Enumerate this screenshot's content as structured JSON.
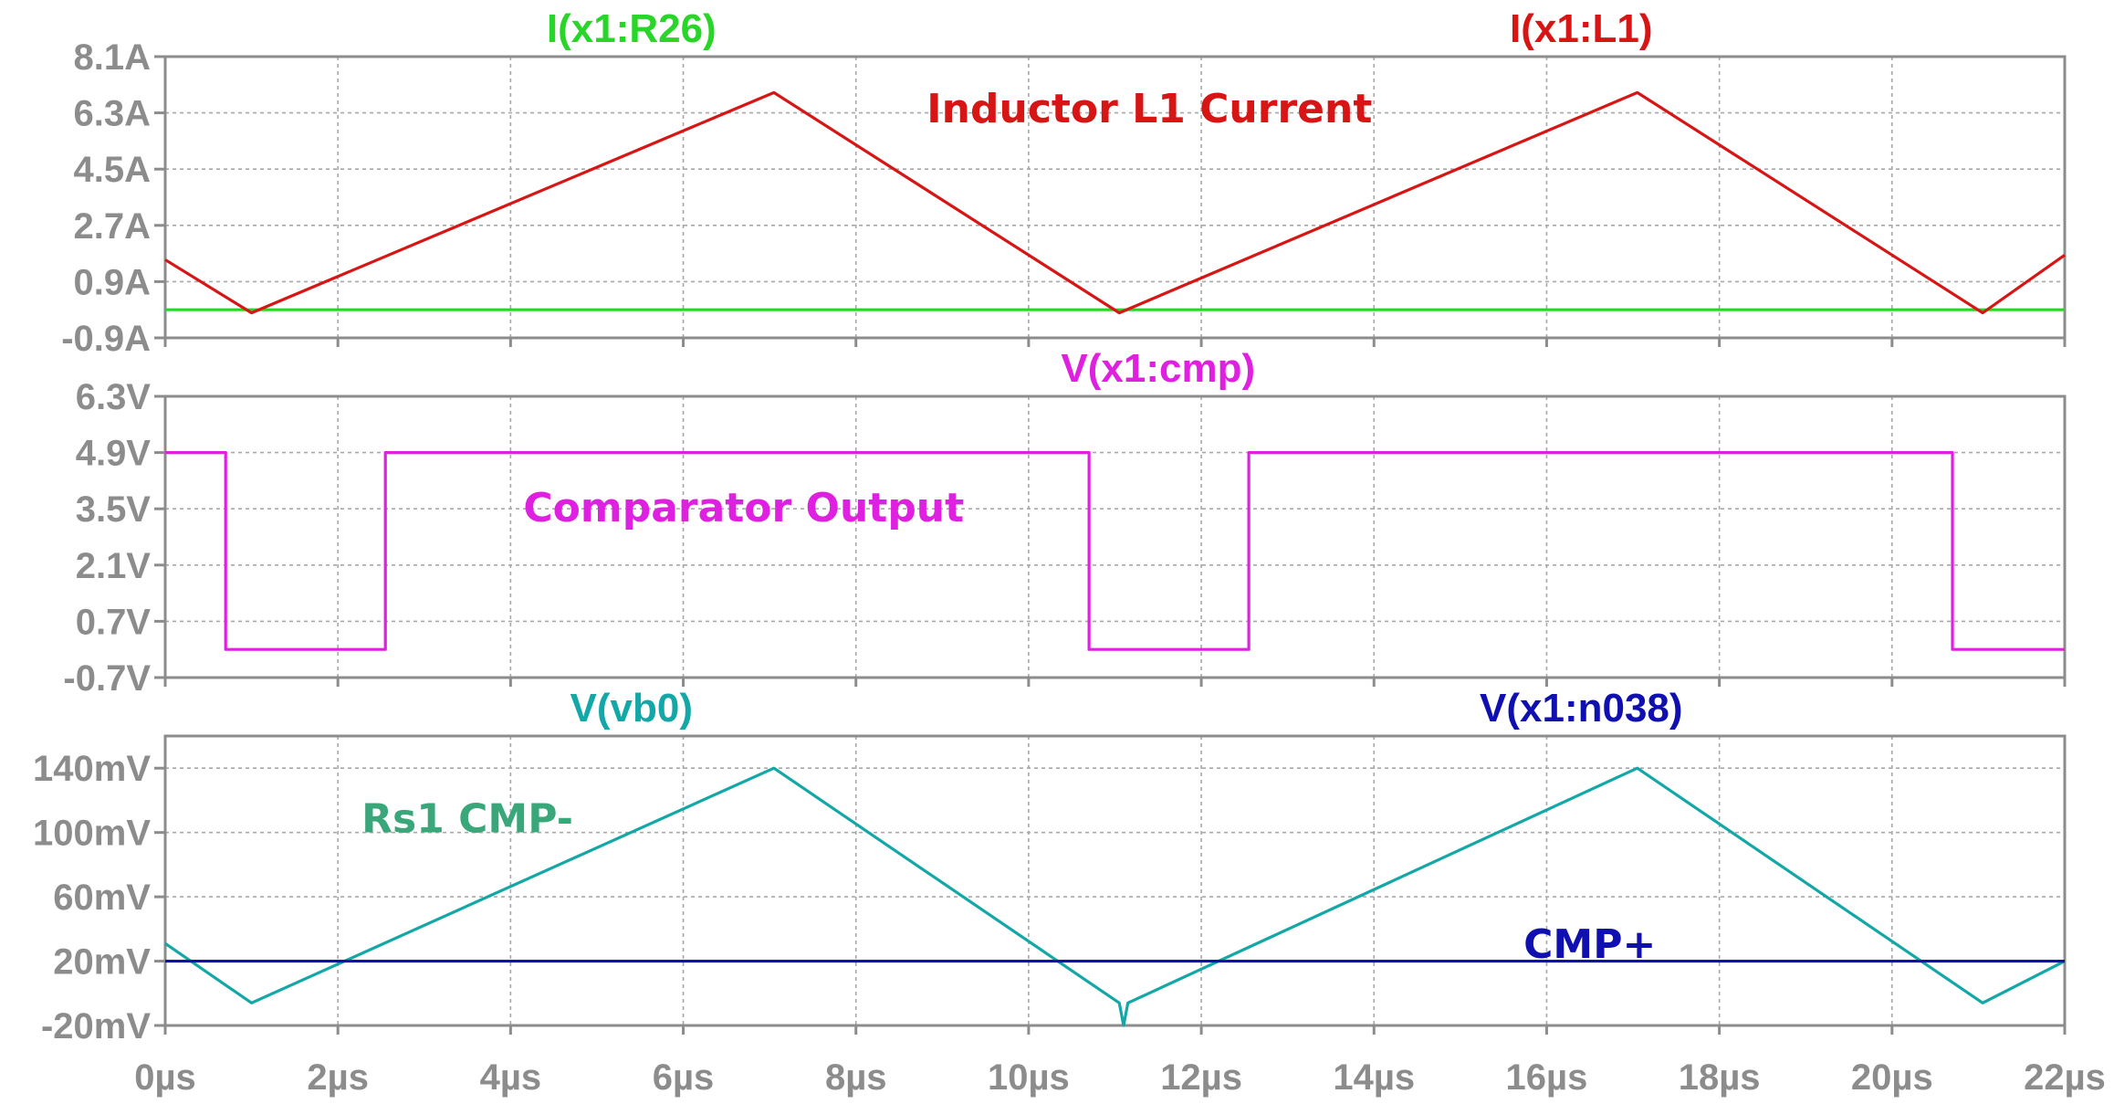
{
  "colors": {
    "background": "#ffffff",
    "axis": "#8c8c8c",
    "grid": "#a8a8a8",
    "tick_text": "#8c8c8c",
    "i_r26": "#2ad52a",
    "i_l1": "#d81515",
    "v_cmp": "#e020e0",
    "v_vb0": "#13a7a7",
    "v_n038": "#1010b0",
    "annot_cmp_minus": "#3aa77a"
  },
  "chart_data": [
    {
      "type": "line",
      "panel": "top",
      "x_ticks": [
        "0µs",
        "2µs",
        "4µs",
        "6µs",
        "8µs",
        "10µs",
        "12µs",
        "14µs",
        "16µs",
        "18µs",
        "20µs",
        "22µs"
      ],
      "xlim": [
        0,
        22
      ],
      "ylim": [
        -0.9,
        8.1
      ],
      "y_ticks": [
        {
          "value": 8.1,
          "label": "8.1A"
        },
        {
          "value": 6.3,
          "label": "6.3A"
        },
        {
          "value": 4.5,
          "label": "4.5A"
        },
        {
          "value": 2.7,
          "label": "2.7A"
        },
        {
          "value": 0.9,
          "label": "0.9A"
        },
        {
          "value": -0.9,
          "label": "-0.9A"
        }
      ],
      "grid": true,
      "series": [
        {
          "name": "I(x1:R26)",
          "color_key": "i_r26",
          "x": [
            0,
            22
          ],
          "y": [
            0.0,
            0.0
          ]
        },
        {
          "name": "I(x1:L1)",
          "color_key": "i_l1",
          "x": [
            0,
            1.0,
            7.05,
            11.05,
            17.05,
            21.05,
            22
          ],
          "y": [
            1.6,
            -0.1,
            6.95,
            -0.1,
            6.95,
            -0.1,
            1.75
          ]
        }
      ],
      "annotations": [
        {
          "text": "Inductor L1 Current",
          "x": 11.4,
          "y": 6.4,
          "color_key": "i_l1"
        }
      ]
    },
    {
      "type": "line",
      "panel": "middle",
      "xlim": [
        0,
        22
      ],
      "ylim": [
        -0.7,
        6.3
      ],
      "y_ticks": [
        {
          "value": 6.3,
          "label": "6.3V"
        },
        {
          "value": 4.9,
          "label": "4.9V"
        },
        {
          "value": 3.5,
          "label": "3.5V"
        },
        {
          "value": 2.1,
          "label": "2.1V"
        },
        {
          "value": 0.7,
          "label": "0.7V"
        },
        {
          "value": -0.7,
          "label": "-0.7V"
        }
      ],
      "grid": true,
      "series": [
        {
          "name": "V(x1:cmp)",
          "color_key": "v_cmp",
          "x": [
            0,
            0.7,
            0.7,
            2.55,
            2.55,
            10.7,
            10.7,
            12.55,
            12.55,
            20.7,
            20.7,
            22
          ],
          "y": [
            4.9,
            4.9,
            0.0,
            0.0,
            4.9,
            4.9,
            0.0,
            0.0,
            4.9,
            4.9,
            0.0,
            0.0
          ]
        }
      ],
      "annotations": [
        {
          "text": "Comparator Output",
          "x": 6.7,
          "y": 3.5,
          "color_key": "v_cmp"
        }
      ]
    },
    {
      "type": "line",
      "panel": "bottom",
      "xlim": [
        0,
        22
      ],
      "ylim": [
        -20,
        160
      ],
      "y_ticks": [
        {
          "value": 140,
          "label": "140mV"
        },
        {
          "value": 100,
          "label": "100mV"
        },
        {
          "value": 60,
          "label": "60mV"
        },
        {
          "value": 20,
          "label": "20mV"
        },
        {
          "value": -20,
          "label": "-20mV"
        }
      ],
      "grid": true,
      "series": [
        {
          "name": "V(vb0)",
          "color_key": "v_vb0",
          "x": [
            0,
            1.0,
            7.05,
            11.05,
            11.1,
            11.15,
            17.05,
            21.05,
            22
          ],
          "y": [
            31,
            -6,
            140,
            -6,
            -20,
            -6,
            140,
            -6,
            20
          ]
        },
        {
          "name": "V(x1:n038)",
          "color_key": "v_n038",
          "x": [
            0,
            22
          ],
          "y": [
            20,
            20
          ]
        }
      ],
      "annotations": [
        {
          "text": "Rs1   CMP-",
          "x": 3.5,
          "y": 108,
          "color_key": "annot_cmp_minus"
        },
        {
          "text": "CMP+",
          "x": 16.5,
          "y": 30,
          "color_key": "v_n038"
        }
      ]
    }
  ],
  "trace_titles": [
    {
      "text": "I(x1:R26)",
      "color_key": "i_r26",
      "panel": "top",
      "at_x": 5.4
    },
    {
      "text": "I(x1:L1)",
      "color_key": "i_l1",
      "panel": "top",
      "at_x": 16.4
    },
    {
      "text": "V(x1:cmp)",
      "color_key": "v_cmp",
      "panel": "middle",
      "at_x": 11.5
    },
    {
      "text": "V(vb0)",
      "color_key": "v_vb0",
      "panel": "bottom",
      "at_x": 5.4
    },
    {
      "text": "V(x1:n038)",
      "color_key": "v_n038",
      "panel": "bottom",
      "at_x": 16.4
    }
  ]
}
